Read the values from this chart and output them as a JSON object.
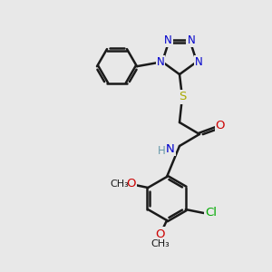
{
  "background_color": "#e8e8e8",
  "bond_color": "#1a1a1a",
  "N_color": "#0000cc",
  "O_color": "#cc0000",
  "S_color": "#aaaa00",
  "Cl_color": "#00aa00",
  "H_color": "#6699aa",
  "figsize": [
    3.0,
    3.0
  ],
  "dpi": 100,
  "xlim": [
    0,
    300
  ],
  "ylim": [
    0,
    300
  ]
}
